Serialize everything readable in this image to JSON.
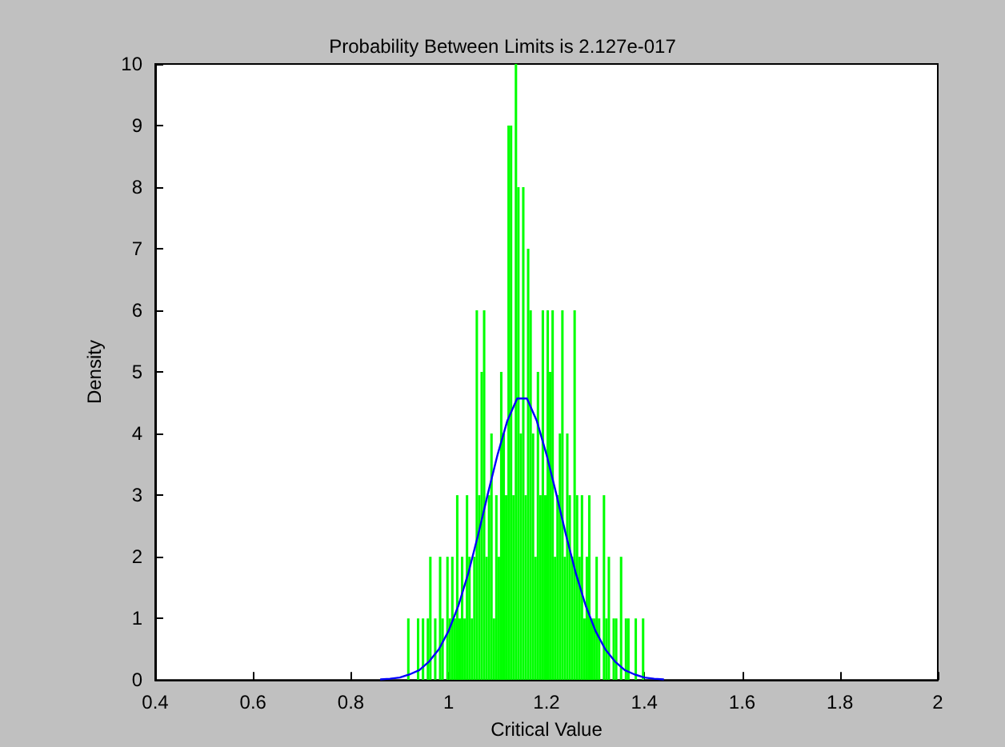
{
  "chart_data": {
    "type": "histogram",
    "title": "Probability Between Limits is 2.127e-017",
    "xlabel": "Critical Value",
    "ylabel": "Density",
    "xlim": [
      0.4,
      2
    ],
    "xticks": [
      0.4,
      0.6,
      0.8,
      1,
      1.2,
      1.4,
      1.6,
      1.8,
      2
    ],
    "ylim": [
      0,
      10
    ],
    "yticks": [
      0,
      1,
      2,
      3,
      4,
      5,
      6,
      7,
      8,
      9,
      10
    ],
    "grid": false,
    "series": [
      {
        "color": "#00ff00",
        "bins": [
          0.9,
          0.905,
          0.91,
          0.915,
          0.92,
          0.925,
          0.93,
          0.935,
          0.94,
          0.945,
          0.95,
          0.955,
          0.96,
          0.965,
          0.97,
          0.975,
          0.98,
          0.985,
          0.99,
          0.995,
          1,
          1.005,
          1.01,
          1.015,
          1.02,
          1.025,
          1.03,
          1.035,
          1.04,
          1.045,
          1.05,
          1.055,
          1.06,
          1.065,
          1.07,
          1.075,
          1.08,
          1.085,
          1.09,
          1.095,
          1.1,
          1.105,
          1.11,
          1.115,
          1.12,
          1.125,
          1.13,
          1.135,
          1.14,
          1.145,
          1.15,
          1.155,
          1.16,
          1.165,
          1.17,
          1.175,
          1.18,
          1.185,
          1.19,
          1.195,
          1.2,
          1.205,
          1.21,
          1.215,
          1.22,
          1.225,
          1.23,
          1.235,
          1.24,
          1.245,
          1.25,
          1.255,
          1.26,
          1.265,
          1.27,
          1.275,
          1.28,
          1.285,
          1.29,
          1.295,
          1.3,
          1.305,
          1.31,
          1.315,
          1.32,
          1.325,
          1.33,
          1.335,
          1.34,
          1.345,
          1.35,
          1.355,
          1.36,
          1.365,
          1.37,
          1.375,
          1.38,
          1.385,
          1.39,
          1.395,
          1.4
        ],
        "values": [
          0,
          0,
          0,
          1,
          0,
          0,
          0,
          1,
          0,
          1,
          0,
          1,
          2,
          0,
          1,
          0,
          2,
          1,
          0,
          2,
          1,
          2,
          1,
          3,
          1,
          2,
          1,
          3,
          2,
          1,
          2,
          6,
          3,
          5,
          6,
          2,
          3,
          4,
          1,
          3,
          2,
          5,
          4,
          3,
          9,
          9,
          3,
          10,
          8,
          4,
          8,
          3,
          7,
          6,
          4,
          2,
          5,
          3,
          6,
          3,
          6,
          5,
          6,
          2,
          3,
          4,
          6,
          2,
          4,
          3,
          2,
          6,
          3,
          2,
          3,
          1,
          2,
          3,
          1,
          1,
          2,
          1,
          0,
          3,
          1,
          2,
          0,
          1,
          1,
          0,
          2,
          0,
          1,
          1,
          0,
          0,
          1,
          0,
          0,
          1
        ]
      },
      {
        "type": "line",
        "color": "#0000ff",
        "marker": "none",
        "line_style": "solid",
        "x": [
          0.86,
          0.88,
          0.9,
          0.92,
          0.94,
          0.96,
          0.98,
          1,
          1.02,
          1.04,
          1.06,
          1.08,
          1.1,
          1.12,
          1.14,
          1.16,
          1.18,
          1.2,
          1.22,
          1.24,
          1.26,
          1.28,
          1.3,
          1.32,
          1.34,
          1.36,
          1.38,
          1.4,
          1.42,
          1.44
        ],
        "values": [
          0.01,
          0.02,
          0.04,
          0.09,
          0.16,
          0.3,
          0.5,
          0.8,
          1.21,
          1.73,
          2.35,
          3.02,
          3.66,
          4.21,
          4.57,
          4.57,
          4.21,
          3.66,
          3.02,
          2.35,
          1.73,
          1.21,
          0.8,
          0.5,
          0.3,
          0.16,
          0.09,
          0.04,
          0.02,
          0.01
        ]
      }
    ]
  }
}
